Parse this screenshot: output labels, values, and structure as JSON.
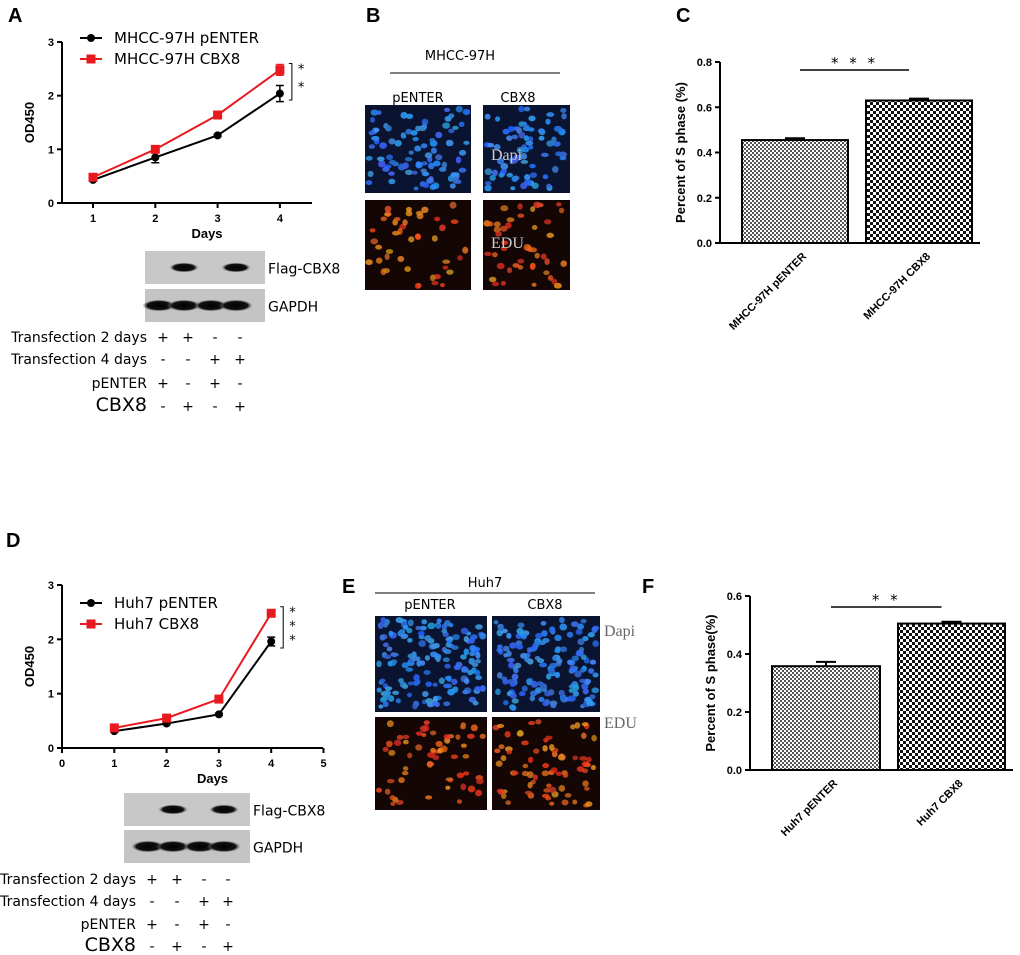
{
  "panels": {
    "A": {
      "label": "A"
    },
    "B": {
      "label": "B",
      "group": "MHCC-97H",
      "columns": [
        "pENTER",
        "CBX8"
      ],
      "rows": [
        "Dapi",
        "EDU"
      ]
    },
    "C": {
      "label": "C"
    },
    "D": {
      "label": "D"
    },
    "E": {
      "label": "E",
      "group": "Huh7",
      "columns": [
        "pENTER",
        "CBX8"
      ],
      "rows": [
        "Dapi",
        "EDU"
      ]
    },
    "F": {
      "label": "F"
    }
  },
  "blots": {
    "A": {
      "bands": [
        "Flag-CBX8",
        "GAPDH"
      ],
      "row_labels": [
        "Transfection 2 days",
        "Transfection 4 days",
        "pENTER",
        "CBX8"
      ],
      "signs": [
        [
          "+",
          "+",
          "-",
          "-"
        ],
        [
          "-",
          "-",
          "+",
          "+"
        ],
        [
          "+",
          "-",
          "+",
          "-"
        ],
        [
          "-",
          "+",
          "-",
          "+"
        ]
      ]
    },
    "D": {
      "bands": [
        "Flag-CBX8",
        "GAPDH"
      ],
      "row_labels": [
        "Transfection 2 days",
        "Transfection 4 days",
        "pENTER",
        "CBX8"
      ],
      "signs": [
        [
          "+",
          "+",
          "-",
          "-"
        ],
        [
          "-",
          "-",
          "+",
          "+"
        ],
        [
          "+",
          "-",
          "+",
          "-"
        ],
        [
          "-",
          "+",
          "-",
          "+"
        ]
      ]
    }
  },
  "colors": {
    "black_series": "#000000",
    "red_series": "#e8191f"
  },
  "chart_data": [
    {
      "id": "A",
      "type": "line",
      "xlabel": "Days",
      "ylabel": "OD450",
      "ylim": [
        0,
        3
      ],
      "xticks": [
        "1",
        "2",
        "3",
        "4"
      ],
      "yticks": [
        "0",
        "1",
        "2",
        "3"
      ],
      "x": [
        1,
        2,
        3,
        4
      ],
      "significance": "* *",
      "legend": "top-left",
      "series": [
        {
          "name": "MHCC-97H pENTER",
          "values": [
            0.43,
            0.85,
            1.26,
            2.04
          ],
          "errors": [
            0.02,
            0.1,
            0.02,
            0.15
          ],
          "color": "#000000",
          "marker": "circle"
        },
        {
          "name": "MHCC-97H  CBX8",
          "values": [
            0.48,
            1.0,
            1.64,
            2.48
          ],
          "errors": [
            0.02,
            0.02,
            0.02,
            0.1
          ],
          "color": "#e8191f",
          "marker": "square"
        }
      ]
    },
    {
      "id": "C",
      "type": "bar",
      "ylabel": "Percent of S phase (%)",
      "ylim": [
        0,
        0.8
      ],
      "yticks": [
        "0.0",
        "0.2",
        "0.4",
        "0.6",
        "0.8"
      ],
      "categories": [
        "MHCC-97H pENTER",
        "MHCC-97H CBX8"
      ],
      "values": [
        0.455,
        0.63
      ],
      "errors": [
        0.008,
        0.008
      ],
      "significance": "* * *"
    },
    {
      "id": "D",
      "type": "line",
      "xlabel": "Days",
      "ylabel": "OD450",
      "ylim": [
        0,
        3
      ],
      "xlim": [
        0,
        5
      ],
      "xticks": [
        "0",
        "1",
        "2",
        "3",
        "4",
        "5"
      ],
      "yticks": [
        "0",
        "1",
        "2",
        "3"
      ],
      "x": [
        1,
        2,
        3,
        4
      ],
      "significance": "* * *",
      "legend": "top-left",
      "series": [
        {
          "name": "Huh7 pENTER",
          "values": [
            0.31,
            0.45,
            0.62,
            1.96
          ],
          "errors": [
            0.02,
            0.02,
            0.02,
            0.08
          ],
          "color": "#000000",
          "marker": "circle"
        },
        {
          "name": "Huh7 CBX8",
          "values": [
            0.37,
            0.55,
            0.9,
            2.48
          ],
          "errors": [
            0.02,
            0.02,
            0.02,
            0.02
          ],
          "color": "#e8191f",
          "marker": "square"
        }
      ]
    },
    {
      "id": "F",
      "type": "bar",
      "ylabel": "Percent of S phase(%)",
      "ylim": [
        0,
        0.6
      ],
      "yticks": [
        "0.0",
        "0.2",
        "0.4",
        "0.6"
      ],
      "categories": [
        "Huh7 pENTER",
        "Huh7 CBX8"
      ],
      "values": [
        0.358,
        0.505
      ],
      "errors": [
        0.015,
        0.006
      ],
      "significance": "* *"
    }
  ]
}
